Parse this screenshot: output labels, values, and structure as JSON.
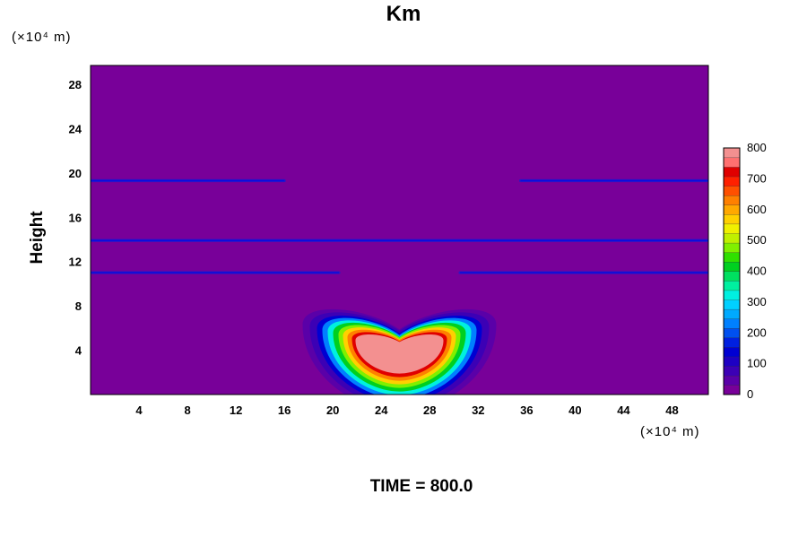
{
  "chart_data": {
    "type": "heatmap",
    "title": "Km",
    "xlabel": "",
    "ylabel": "Height",
    "x_unit": "(×10⁴ m)",
    "y_unit": "(×10⁴ m)",
    "x_ticks": [
      4,
      8,
      12,
      16,
      20,
      24,
      28,
      32,
      36,
      40,
      44,
      48
    ],
    "y_ticks": [
      4,
      8,
      12,
      16,
      20,
      24,
      28
    ],
    "xlim": [
      0,
      51
    ],
    "ylim": [
      0,
      29.7
    ],
    "colorbar": {
      "ticks": [
        0,
        100,
        200,
        300,
        400,
        500,
        600,
        700,
        800
      ],
      "range": [
        0,
        800
      ],
      "colors": [
        "#780099",
        "#5a00a8",
        "#3c00b5",
        "#1e00c3",
        "#0000d2",
        "#0020e0",
        "#0050f0",
        "#0080ff",
        "#00aaff",
        "#00d0ff",
        "#00f0e0",
        "#00f0a0",
        "#00e060",
        "#00d020",
        "#30e000",
        "#80f000",
        "#c0f000",
        "#f0f000",
        "#ffd000",
        "#ffa800",
        "#ff8000",
        "#ff5000",
        "#ff2000",
        "#e00000",
        "#ff7070",
        "#f39090"
      ]
    },
    "background_value": 0,
    "features": [
      {
        "kind": "horizontal_band",
        "y": 19.3,
        "x_ranges": [
          [
            0,
            16
          ],
          [
            35.5,
            51
          ]
        ],
        "value": 60
      },
      {
        "kind": "horizontal_band",
        "y": 13.9,
        "x_ranges": [
          [
            0,
            51
          ]
        ],
        "value": 60
      },
      {
        "kind": "horizontal_band",
        "y": 11.0,
        "x_ranges": [
          [
            0,
            20.5
          ],
          [
            30.5,
            51
          ]
        ],
        "value": 60
      },
      {
        "kind": "crescent_maximum",
        "x_center": 25.5,
        "y_center": 4.0,
        "peak_value": 800
      }
    ],
    "annotation": "TIME = 800.0"
  }
}
